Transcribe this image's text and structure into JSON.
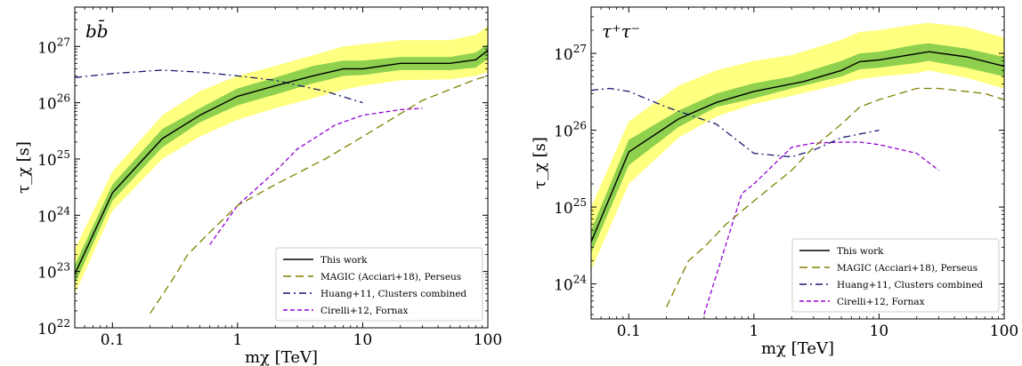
{
  "chart_data": [
    {
      "type": "line",
      "panel_tag": "bb̄",
      "xlabel": "m_χ [TeV]",
      "ylabel": "τ_χ [s]",
      "xscale": "log",
      "yscale": "log",
      "xlim": [
        0.05,
        100
      ],
      "ylim": [
        1e+22,
        5e+27
      ],
      "x_ticks": [
        {
          "v": 0.1,
          "label": "0.1"
        },
        {
          "v": 1,
          "label": "1"
        },
        {
          "v": 10,
          "label": "10"
        },
        {
          "v": 100,
          "label": "100"
        }
      ],
      "y_ticks": [
        {
          "v": 1e+22,
          "base": "10",
          "exp": "22"
        },
        {
          "v": 1e+23,
          "base": "10",
          "exp": "23"
        },
        {
          "v": 1e+24,
          "base": "10",
          "exp": "24"
        },
        {
          "v": 1e+25,
          "base": "10",
          "exp": "25"
        },
        {
          "v": 1e+26,
          "base": "10",
          "exp": "26"
        },
        {
          "v": 1e+27,
          "base": "10",
          "exp": "27"
        }
      ],
      "legend_position": "lower-right",
      "bands": {
        "x": [
          0.05,
          0.1,
          0.25,
          0.5,
          1,
          2,
          4,
          7,
          10,
          20,
          50,
          80,
          100
        ],
        "outer_low": [
          4e+22,
          1.2e+24,
          1e+25,
          2.5e+25,
          5e+25,
          8e+25,
          1.2e+26,
          1.7e+26,
          2e+26,
          2.5e+26,
          2.6e+26,
          3e+26,
          3.5e+26
        ],
        "outer_high": [
          2.5e+23,
          6e+24,
          6e+25,
          1.6e+26,
          3e+26,
          4.5e+26,
          7e+26,
          1e+27,
          1.1e+27,
          1.3e+27,
          1.3e+27,
          1.6e+27,
          2.3e+27
        ],
        "inner_low": [
          6e+22,
          1.8e+24,
          1.6e+25,
          4.5e+25,
          9e+25,
          1.4e+26,
          2.2e+26,
          3e+26,
          3.1e+26,
          3.8e+26,
          3.8e+26,
          4.2e+26,
          6e+26
        ],
        "inner_high": [
          1.3e+23,
          3.5e+24,
          3.4e+25,
          8e+25,
          1.8e+26,
          2.8e+26,
          4.5e+26,
          5.6e+26,
          5.6e+26,
          6.5e+26,
          6.5e+26,
          7.8e+26,
          1.1e+27
        ]
      },
      "series": [
        {
          "name": "This work",
          "style": "solid",
          "color": "#000000",
          "x": [
            0.05,
            0.1,
            0.25,
            0.5,
            1,
            2,
            4,
            7,
            10,
            20,
            50,
            80,
            100
          ],
          "y": [
            9e+22,
            2.5e+24,
            2.3e+25,
            6e+25,
            1.3e+26,
            2e+26,
            3e+26,
            4e+26,
            4e+26,
            5e+26,
            5e+26,
            5.8e+26,
            8.5e+26
          ]
        },
        {
          "name": "MAGIC (Acciari+18), Perseus",
          "style": "dashed",
          "color": "#808000",
          "x": [
            0.2,
            0.3,
            0.4,
            0.6,
            1,
            2,
            5,
            10,
            30,
            80,
            100
          ],
          "y": [
            1.8e+22,
            7e+22,
            2e+23,
            5e+23,
            1.5e+24,
            3.5e+24,
            1e+25,
            2.5e+25,
            1.1e+26,
            2.6e+26,
            3e+26
          ]
        },
        {
          "name": "Huang+11, Clusters combined",
          "style": "dashdot",
          "color": "#191970",
          "x": [
            0.05,
            0.1,
            0.25,
            0.5,
            1,
            2,
            5,
            10
          ],
          "y": [
            2.8e+26,
            3.3e+26,
            3.8e+26,
            3.5e+26,
            3e+26,
            2.5e+26,
            1.6e+26,
            1e+26
          ]
        },
        {
          "name": "Cirelli+12, Fornax",
          "style": "shortdash",
          "color": "#9400d3",
          "x": [
            0.6,
            1,
            2,
            3,
            6,
            10,
            20,
            30
          ],
          "y": [
            3e+23,
            1.5e+24,
            6e+24,
            1.5e+25,
            4e+25,
            6e+25,
            7.5e+25,
            8e+25
          ]
        }
      ]
    },
    {
      "type": "line",
      "panel_tag": "τ⁺τ⁻",
      "xlabel": "m_χ [TeV]",
      "ylabel": "τ_χ [s]",
      "xscale": "log",
      "yscale": "log",
      "xlim": [
        0.05,
        100
      ],
      "ylim": [
        3.5e+23,
        4e+27
      ],
      "x_ticks": [
        {
          "v": 0.1,
          "label": "0.1"
        },
        {
          "v": 1,
          "label": "1"
        },
        {
          "v": 10,
          "label": "10"
        },
        {
          "v": 100,
          "label": "100"
        }
      ],
      "y_ticks": [
        {
          "v": 1e+24,
          "base": "10",
          "exp": "24"
        },
        {
          "v": 1e+25,
          "base": "10",
          "exp": "25"
        },
        {
          "v": 1e+26,
          "base": "10",
          "exp": "26"
        },
        {
          "v": 1e+27,
          "base": "10",
          "exp": "27"
        }
      ],
      "legend_position": "lower-right",
      "bands": {
        "x": [
          0.05,
          0.1,
          0.25,
          0.5,
          1,
          2,
          5,
          7,
          10,
          20,
          25,
          50,
          100
        ],
        "outer_low": [
          1.5e+24,
          2e+25,
          8e+25,
          1.5e+26,
          2.2e+26,
          2.8e+26,
          4e+26,
          4.6e+26,
          5e+26,
          5.5e+26,
          6e+26,
          4.8e+26,
          3.5e+26
        ],
        "outer_high": [
          1e+25,
          1.3e+26,
          3.8e+26,
          6e+26,
          8e+26,
          9.5e+26,
          1.5e+27,
          1.9e+27,
          2e+27,
          2.4e+27,
          2.5e+27,
          2.2e+27,
          1.6e+27
        ],
        "inner_low": [
          2.5e+24,
          3.5e+25,
          1.1e+26,
          2e+26,
          2.6e+26,
          3.5e+26,
          5e+26,
          6.2e+26,
          6.5e+26,
          7.5e+26,
          8e+26,
          6.5e+26,
          5e+26
        ],
        "inner_high": [
          5e+24,
          7.5e+25,
          1.8e+26,
          3e+26,
          4.1e+26,
          5e+26,
          8e+26,
          1e+27,
          1.05e+27,
          1.3e+27,
          1.35e+27,
          1.15e+27,
          9e+26
        ]
      },
      "series": [
        {
          "name": "This work",
          "style": "solid",
          "color": "#000000",
          "x": [
            0.05,
            0.1,
            0.25,
            0.5,
            1,
            2.5,
            5,
            7,
            10,
            25,
            50,
            100
          ],
          "y": [
            3.5e+24,
            5.2e+25,
            1.4e+26,
            2.3e+26,
            3.2e+26,
            4.3e+26,
            6e+26,
            7.8e+26,
            8.2e+26,
            1.05e+27,
            9e+26,
            6.8e+26
          ]
        },
        {
          "name": "MAGIC (Acciari+18), Perseus",
          "style": "dashed",
          "color": "#808000",
          "x": [
            0.2,
            0.3,
            0.4,
            0.6,
            1,
            2,
            3,
            5,
            7,
            10,
            20,
            30,
            70,
            100
          ],
          "y": [
            5e+23,
            2e+24,
            3e+24,
            6e+24,
            1.2e+25,
            3e+25,
            6e+25,
            1.2e+26,
            2e+26,
            2.5e+26,
            3.5e+26,
            3.5e+26,
            3e+26,
            2.5e+26
          ]
        },
        {
          "name": "Huang+11, Clusters combined",
          "style": "dashdot",
          "color": "#191970",
          "x": [
            0.05,
            0.07,
            0.1,
            0.2,
            0.5,
            1,
            2,
            3,
            5,
            10
          ],
          "y": [
            3.3e+26,
            3.5e+26,
            3.2e+26,
            2e+26,
            1.2e+26,
            5e+25,
            4.5e+25,
            5.5e+25,
            8e+25,
            1e+26
          ]
        },
        {
          "name": "Cirelli+12, Fornax",
          "style": "shortdash",
          "color": "#9400d3",
          "x": [
            0.4,
            0.8,
            1,
            2,
            3,
            5,
            7,
            10,
            20,
            30
          ],
          "y": [
            4e+23,
            1.5e+25,
            2e+25,
            6e+25,
            6.8e+25,
            7e+25,
            7e+25,
            6.5e+25,
            5e+25,
            3e+25
          ]
        }
      ]
    }
  ]
}
